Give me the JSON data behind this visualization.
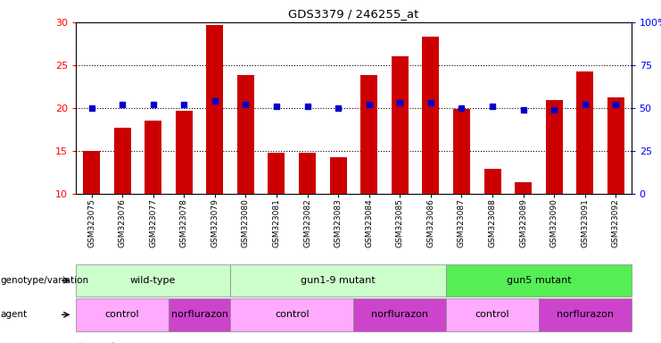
{
  "title": "GDS3379 / 246255_at",
  "samples": [
    "GSM323075",
    "GSM323076",
    "GSM323077",
    "GSM323078",
    "GSM323079",
    "GSM323080",
    "GSM323081",
    "GSM323082",
    "GSM323083",
    "GSM323084",
    "GSM323085",
    "GSM323086",
    "GSM323087",
    "GSM323088",
    "GSM323089",
    "GSM323090",
    "GSM323091",
    "GSM323092"
  ],
  "bar_values": [
    15.0,
    17.7,
    18.5,
    19.7,
    29.7,
    23.9,
    14.8,
    14.8,
    14.3,
    23.8,
    26.0,
    28.3,
    19.9,
    12.9,
    11.4,
    20.9,
    24.3,
    21.2
  ],
  "percentile_values": [
    50,
    52,
    52,
    52,
    54,
    52,
    51,
    51,
    50,
    52,
    53,
    53,
    50,
    51,
    49,
    49,
    52,
    52
  ],
  "bar_color": "#cc0000",
  "dot_color": "#0000cc",
  "ylim_left": [
    10,
    30
  ],
  "ylim_right": [
    0,
    100
  ],
  "yticks_left": [
    10,
    15,
    20,
    25,
    30
  ],
  "yticks_right": [
    0,
    25,
    50,
    75,
    100
  ],
  "ytick_labels_right": [
    "0",
    "25",
    "50",
    "75",
    "100%"
  ],
  "genotype_groups": [
    {
      "label": "wild-type",
      "start": 0,
      "end": 5,
      "color": "#ccffcc"
    },
    {
      "label": "gun1-9 mutant",
      "start": 5,
      "end": 12,
      "color": "#ccffcc"
    },
    {
      "label": "gun5 mutant",
      "start": 12,
      "end": 18,
      "color": "#55ee55"
    }
  ],
  "agent_groups": [
    {
      "label": "control",
      "start": 0,
      "end": 3,
      "color": "#ffaaff"
    },
    {
      "label": "norflurazon",
      "start": 3,
      "end": 5,
      "color": "#cc44cc"
    },
    {
      "label": "control",
      "start": 5,
      "end": 9,
      "color": "#ffaaff"
    },
    {
      "label": "norflurazon",
      "start": 9,
      "end": 12,
      "color": "#cc44cc"
    },
    {
      "label": "control",
      "start": 12,
      "end": 15,
      "color": "#ffaaff"
    },
    {
      "label": "norflurazon",
      "start": 15,
      "end": 18,
      "color": "#cc44cc"
    }
  ],
  "legend_count_color": "#cc0000",
  "legend_dot_color": "#0000cc",
  "bg_color": "#ffffff"
}
